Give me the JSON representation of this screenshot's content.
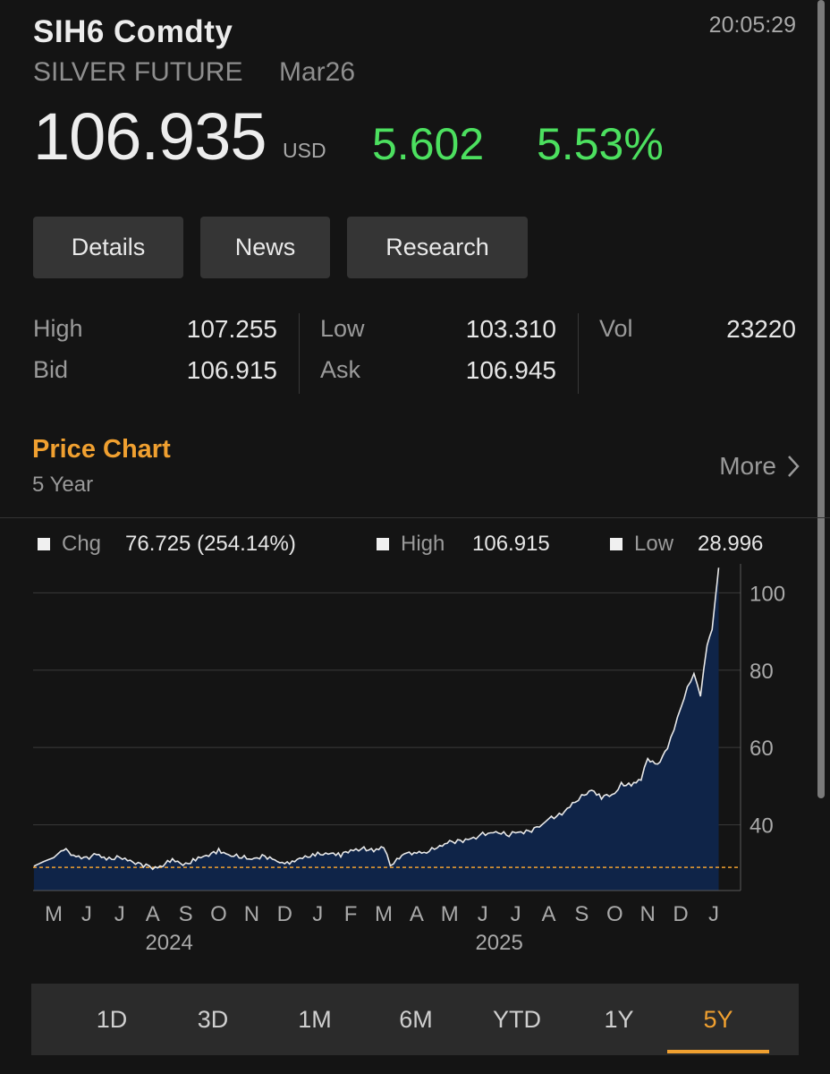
{
  "header": {
    "ticker": "SIH6 Comdty",
    "time": "20:05:29",
    "name": "SILVER FUTURE",
    "expiry": "Mar26",
    "price": "106.935",
    "currency": "USD",
    "change": "5.602",
    "change_pct": "5.53%",
    "up_color": "#4ce05f"
  },
  "tabs": [
    "Details",
    "News",
    "Research"
  ],
  "stats": {
    "high_label": "High",
    "high": "107.255",
    "bid_label": "Bid",
    "bid": "106.915",
    "low_label": "Low",
    "low": "103.310",
    "ask_label": "Ask",
    "ask": "106.945",
    "vol_label": "Vol",
    "vol": "23220"
  },
  "section": {
    "title": "Price Chart",
    "subtitle": "5 Year",
    "more_label": "More",
    "accent": "#f0a030"
  },
  "legend": {
    "chg_label": "Chg",
    "chg_value": "76.725 (254.14%)",
    "high_label": "High",
    "high_value": "106.915",
    "low_label": "Low",
    "low_value": "28.996"
  },
  "chart_data": {
    "type": "area",
    "y_ticks": [
      100,
      80,
      60,
      40
    ],
    "ylim": [
      23,
      107.5
    ],
    "month_labels": [
      "M",
      "J",
      "J",
      "A",
      "S",
      "O",
      "N",
      "D",
      "J",
      "F",
      "M",
      "A",
      "M",
      "J",
      "J",
      "A",
      "S",
      "O",
      "N",
      "D",
      "J"
    ],
    "year_labels": [
      {
        "label": "2024",
        "month_index": 3.5
      },
      {
        "label": "2025",
        "month_index": 13.5
      }
    ],
    "reference_line": 29.0,
    "x_month_index": [
      -0.6,
      -0.3,
      0.0,
      0.3,
      0.6,
      1.0,
      1.3,
      1.6,
      2.0,
      2.4,
      2.8,
      3.0,
      3.3,
      3.6,
      4.0,
      4.3,
      4.7,
      5.0,
      5.3,
      5.7,
      6.0,
      6.4,
      6.7,
      7.0,
      7.3,
      7.7,
      8.0,
      8.4,
      8.7,
      9.0,
      9.4,
      9.7,
      10.0,
      10.2,
      10.4,
      10.7,
      11.0,
      11.3,
      11.7,
      12.0,
      12.4,
      12.8,
      13.0,
      13.4,
      13.8,
      14.0,
      14.4,
      14.8,
      15.0,
      15.4,
      15.8,
      16.0,
      16.3,
      16.6,
      17.0,
      17.2,
      17.5,
      17.8,
      18.0,
      18.3,
      18.6,
      18.8,
      19.0,
      19.2,
      19.4,
      19.6,
      19.8,
      19.95,
      20.05,
      20.15
    ],
    "values": [
      29.3,
      30.5,
      31.5,
      33.8,
      32.0,
      31.5,
      32.3,
      31.0,
      31.8,
      30.2,
      29.4,
      28.8,
      29.6,
      30.8,
      29.8,
      31.2,
      32.0,
      33.5,
      32.2,
      31.5,
      31.2,
      32.0,
      30.6,
      29.8,
      31.0,
      31.6,
      32.3,
      32.8,
      32.2,
      33.3,
      34.0,
      33.2,
      34.2,
      29.5,
      31.2,
      32.4,
      32.9,
      33.1,
      34.2,
      35.6,
      36.0,
      36.5,
      37.6,
      38.2,
      37.2,
      38.0,
      38.4,
      39.8,
      41.5,
      43.0,
      45.8,
      47.2,
      49.1,
      47.2,
      47.8,
      50.6,
      50.3,
      51.7,
      57.1,
      55.6,
      59.5,
      64.8,
      70.5,
      75.3,
      78.8,
      73.8,
      86.6,
      90.5,
      98.5,
      106.5
    ]
  },
  "periods": [
    "1D",
    "3D",
    "1M",
    "6M",
    "YTD",
    "1Y",
    "5Y"
  ],
  "active_period": "5Y"
}
